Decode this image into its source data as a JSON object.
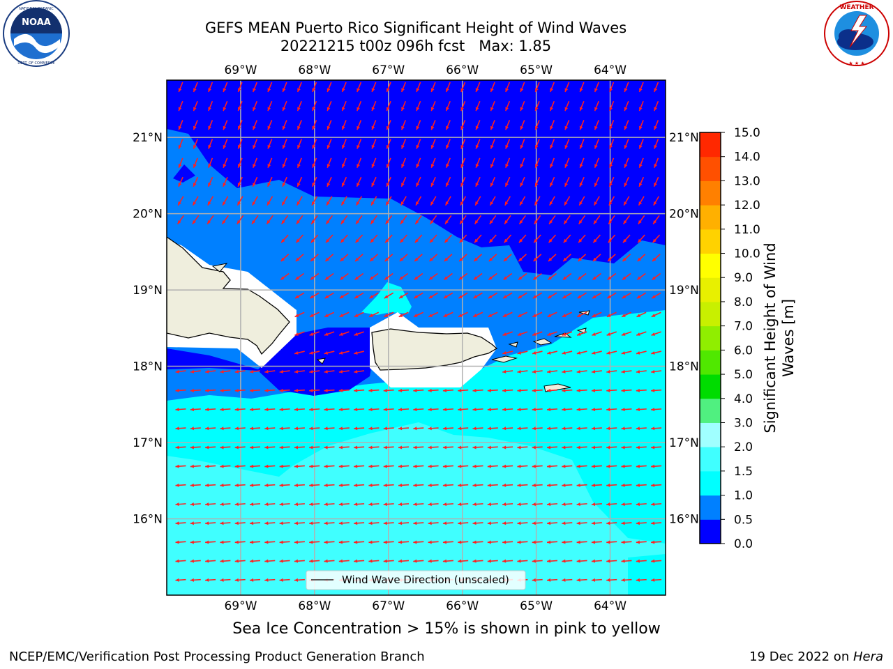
{
  "title": {
    "line1": "GEFS MEAN Puerto Rico Significant Height of Wind Waves",
    "line2": "20221215 t00z 096h fcst   Max: 1.85"
  },
  "logos": {
    "left": {
      "icon": "noaa-logo",
      "text": "NOAA",
      "ring_text": "NATIONAL OCEANIC AND ATMOSPHERIC ADMINISTRATION · U.S. DEPARTMENT OF COMMERCE"
    },
    "right": {
      "icon": "nws-logo",
      "ring_text": "NATIONAL WEATHER SERVICE"
    }
  },
  "map": {
    "lon_labels": [
      "69°W",
      "68°W",
      "67°W",
      "66°W",
      "65°W",
      "64°W"
    ],
    "lat_labels": [
      "21°N",
      "20°N",
      "19°N",
      "18°N",
      "17°N",
      "16°N"
    ],
    "lon_ticks": [
      -69,
      -68,
      -67,
      -66,
      -65,
      -64
    ],
    "lat_ticks": [
      21,
      20,
      19,
      18,
      17,
      16
    ],
    "extent": {
      "lon_min": -70,
      "lon_max": -63.25,
      "lat_min": 15,
      "lat_max": 21.75
    },
    "land_color": "#efeedd",
    "grid_color": "#b0b0b0",
    "arrow_color": "#ff2020",
    "legend_label": "Wind Wave Direction (unscaled)"
  },
  "colorbar": {
    "label": "Significant Height of Wind Waves [m]",
    "tick_labels": [
      "0.0",
      "0.5",
      "1.0",
      "1.5",
      "2.0",
      "3.0",
      "4.0",
      "5.0",
      "6.0",
      "7.0",
      "8.0",
      "9.0",
      "10.0",
      "11.0",
      "12.0",
      "13.0",
      "14.0",
      "15.0"
    ],
    "colors": [
      "#0000ff",
      "#0080ff",
      "#00ffff",
      "#40ffff",
      "#a0ffff",
      "#50f080",
      "#00dc00",
      "#50e800",
      "#90ee00",
      "#c8f000",
      "#e8f000",
      "#ffff00",
      "#ffd200",
      "#ffb000",
      "#ff8000",
      "#ff5000",
      "#ff2800"
    ]
  },
  "note": "Sea Ice Concentration > 15% is shown in pink to yellow",
  "footer": {
    "left": "NCEP/EMC/Verification Post Processing Product Generation Branch",
    "right_date": "19 Dec 2022 on ",
    "right_host": "Hera"
  }
}
